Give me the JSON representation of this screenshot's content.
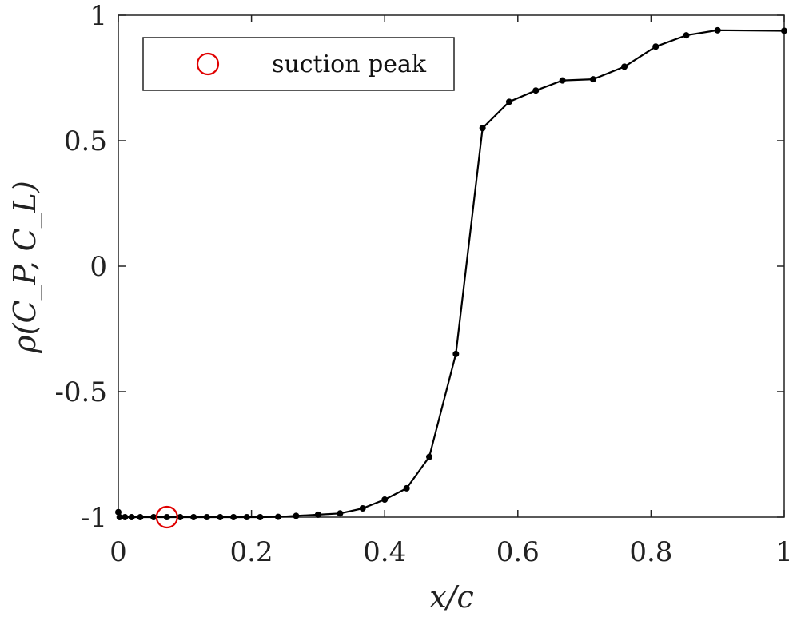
{
  "chart_data": {
    "type": "line",
    "xlabel": "x/c",
    "ylabel": "ρ(C_P, C_L)",
    "xlim": [
      0,
      1
    ],
    "ylim": [
      -1,
      1
    ],
    "grid": false,
    "legend_placement": "top-left",
    "x_ticks": [
      {
        "value": 0,
        "label": "0"
      },
      {
        "value": 0.2,
        "label": "0.2"
      },
      {
        "value": 0.4,
        "label": "0.4"
      },
      {
        "value": 0.6,
        "label": "0.6"
      },
      {
        "value": 0.8,
        "label": "0.8"
      },
      {
        "value": 1,
        "label": "1"
      }
    ],
    "y_ticks": [
      {
        "value": -1,
        "label": "-1"
      },
      {
        "value": -0.5,
        "label": "-0.5"
      },
      {
        "value": 0,
        "label": "0"
      },
      {
        "value": 0.5,
        "label": "0.5"
      },
      {
        "value": 1,
        "label": "1"
      }
    ],
    "series": [
      {
        "color": "#000000",
        "marker": "dot",
        "points": [
          [
            0.0,
            -0.98
          ],
          [
            0.002,
            -1.0
          ],
          [
            0.01,
            -1.0
          ],
          [
            0.02,
            -1.0
          ],
          [
            0.033,
            -1.0
          ],
          [
            0.053,
            -1.0
          ],
          [
            0.073,
            -1.0
          ],
          [
            0.093,
            -1.0
          ],
          [
            0.113,
            -1.0
          ],
          [
            0.133,
            -1.0
          ],
          [
            0.153,
            -1.0
          ],
          [
            0.173,
            -1.0
          ],
          [
            0.193,
            -1.0
          ],
          [
            0.213,
            -1.0
          ],
          [
            0.24,
            -0.999
          ],
          [
            0.267,
            -0.995
          ],
          [
            0.3,
            -0.99
          ],
          [
            0.333,
            -0.985
          ],
          [
            0.367,
            -0.965
          ],
          [
            0.4,
            -0.93
          ],
          [
            0.433,
            -0.885
          ],
          [
            0.467,
            -0.76
          ],
          [
            0.507,
            -0.35
          ],
          [
            0.547,
            0.55
          ],
          [
            0.587,
            0.655
          ],
          [
            0.627,
            0.7
          ],
          [
            0.667,
            0.74
          ],
          [
            0.713,
            0.745
          ],
          [
            0.76,
            0.795
          ],
          [
            0.807,
            0.875
          ],
          [
            0.853,
            0.92
          ],
          [
            0.9,
            0.94
          ],
          [
            1.0,
            0.938
          ]
        ]
      },
      {
        "name": "suction peak",
        "color": "#e00000",
        "marker": "open-circle",
        "points": [
          [
            0.073,
            -1.0
          ]
        ]
      }
    ]
  }
}
